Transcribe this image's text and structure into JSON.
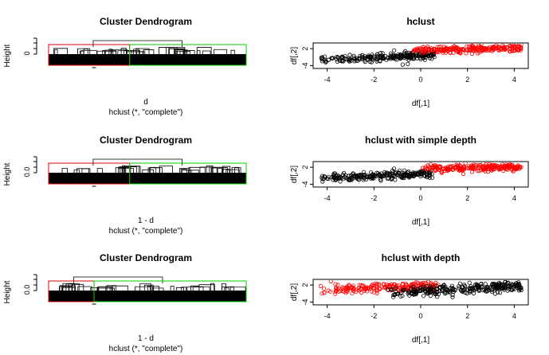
{
  "colors": {
    "black": "#000000",
    "red": "#ff0000",
    "green": "#00cd00",
    "dendro_red": "#df0000"
  },
  "panels": [
    {
      "dendrogram": {
        "title": "Cluster Dendrogram",
        "ylabel": "Height",
        "ytick": "0",
        "xlabel": "d",
        "sub": "hclust (*, \"complete\")",
        "clusters": [
          {
            "color": "#df0000",
            "fraction": 0.41
          },
          {
            "color": "#00cd00",
            "fraction": 0.59
          }
        ]
      },
      "scatter": {
        "title": "hclust",
        "xlabel": "df[,1]",
        "ylabel": "df[,2]",
        "xticks": [
          "-4",
          "-2",
          "0",
          "2",
          "4"
        ],
        "yticks": [
          "2",
          "-4"
        ]
      }
    },
    {
      "dendrogram": {
        "title": "Cluster Dendrogram",
        "ylabel": "Height",
        "ytick": "0.0",
        "xlabel": "1 - d",
        "sub": "hclust (*, \"complete\")",
        "clusters": [
          {
            "color": "#df0000",
            "fraction": 0.41
          },
          {
            "color": "#00cd00",
            "fraction": 0.59
          }
        ]
      },
      "scatter": {
        "title": "hclust with simple depth",
        "xlabel": "df[,1]",
        "ylabel": "df[,2]",
        "xticks": [
          "-4",
          "-2",
          "0",
          "2",
          "4"
        ],
        "yticks": [
          "2",
          "-4"
        ]
      }
    },
    {
      "dendrogram": {
        "title": "Cluster Dendrogram",
        "ylabel": "Height",
        "ytick": "0.0",
        "xlabel": "1 - d",
        "sub": "hclust (*, \"complete\")",
        "clusters": [
          {
            "color": "#df0000",
            "fraction": 0.23
          },
          {
            "color": "#00cd00",
            "fraction": 0.77
          }
        ]
      },
      "scatter": {
        "title": "hclust with depth",
        "xlabel": "df[,1]",
        "ylabel": "df[,2]",
        "xticks": [
          "-4",
          "-2",
          "0",
          "2",
          "4"
        ],
        "yticks": [
          "2",
          "-4"
        ]
      }
    }
  ],
  "chart_data": [
    {
      "type": "scatter",
      "title": "hclust",
      "xlabel": "df[,1]",
      "ylabel": "df[,2]",
      "xlim": [
        -4.6,
        4.6
      ],
      "ylim": [
        -5,
        4
      ],
      "series": [
        {
          "color": "#000000",
          "x_range": [
            -4.3,
            0.6
          ],
          "y_center": -1.0,
          "slope": 0.35,
          "spread": 1.3,
          "n": 240
        },
        {
          "color": "#ff0000",
          "x_range": [
            -0.4,
            4.3
          ],
          "y_center": 1.8,
          "slope": 0.15,
          "spread": 1.1,
          "n": 240
        }
      ]
    },
    {
      "type": "scatter",
      "title": "hclust with simple depth",
      "xlabel": "df[,1]",
      "ylabel": "df[,2]",
      "xlim": [
        -4.6,
        4.6
      ],
      "ylim": [
        -5,
        4
      ],
      "series": [
        {
          "color": "#000000",
          "x_range": [
            -4.3,
            0.5
          ],
          "y_center": -1.0,
          "slope": 0.35,
          "spread": 1.3,
          "n": 240
        },
        {
          "color": "#ff0000",
          "x_range": [
            0.0,
            4.3
          ],
          "y_center": 1.8,
          "slope": 0.1,
          "spread": 1.0,
          "n": 240
        }
      ]
    },
    {
      "type": "scatter",
      "title": "hclust with depth",
      "xlabel": "df[,1]",
      "ylabel": "df[,2]",
      "xlim": [
        -4.6,
        4.6
      ],
      "ylim": [
        -5,
        4
      ],
      "series": [
        {
          "color": "#ff0000",
          "x_range": [
            -4.3,
            0.8
          ],
          "y_center": 1.0,
          "slope": 0.35,
          "spread": 1.6,
          "n": 200
        },
        {
          "color": "#000000",
          "x_range": [
            -1.5,
            4.3
          ],
          "y_center": 0.5,
          "slope": 0.45,
          "spread": 1.6,
          "n": 280
        }
      ]
    }
  ]
}
